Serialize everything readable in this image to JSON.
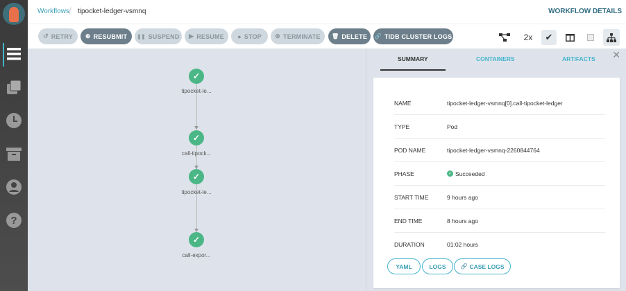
{
  "sidebar": {
    "items": [
      {
        "name": "workflows",
        "icon": "list-icon"
      },
      {
        "name": "templates",
        "icon": "copy-icon"
      },
      {
        "name": "cron",
        "icon": "clock-icon"
      },
      {
        "name": "archive",
        "icon": "archive-icon"
      },
      {
        "name": "user",
        "icon": "user-icon"
      },
      {
        "name": "help",
        "icon": "help-icon"
      }
    ]
  },
  "breadcrumb": {
    "parent": "Workflows",
    "separator": "/",
    "current": "tipocket-ledger-vsmnq"
  },
  "header": {
    "title": "WORKFLOW DETAILS"
  },
  "toolbar": {
    "buttons": [
      {
        "label": "RETRY",
        "icon": "↺"
      },
      {
        "label": "RESUBMIT",
        "icon": "⊕"
      },
      {
        "label": "SUSPEND",
        "icon": "❚❚"
      },
      {
        "label": "RESUME",
        "icon": "▶"
      },
      {
        "label": "STOP",
        "icon": "●"
      },
      {
        "label": "TERMINATE",
        "icon": "⊗"
      },
      {
        "label": "DELETE",
        "icon": "🗑"
      },
      {
        "label": "TIDB CLUSTER LOGS",
        "icon": "🔗"
      }
    ],
    "zoom": "2x"
  },
  "graph": {
    "nodes": [
      {
        "label": "tipocket-le...",
        "status": "succeeded"
      },
      {
        "label": "call-tipock...",
        "status": "succeeded"
      },
      {
        "label": "tipocket-le...",
        "status": "succeeded"
      },
      {
        "label": "call-expor...",
        "status": "succeeded"
      }
    ],
    "status_color": "#4bb786"
  },
  "panel": {
    "tabs": [
      "SUMMARY",
      "CONTAINERS",
      "ARTIFACTS"
    ],
    "active_tab": "SUMMARY",
    "rows": [
      {
        "key": "NAME",
        "value": "tipocket-ledger-vsmnq[0].call-tipocket-ledger"
      },
      {
        "key": "TYPE",
        "value": "Pod"
      },
      {
        "key": "POD NAME",
        "value": "tipocket-ledger-vsmnq-2260844764"
      },
      {
        "key": "PHASE",
        "value": "Succeeded"
      },
      {
        "key": "START TIME",
        "value": "9 hours ago"
      },
      {
        "key": "END TIME",
        "value": "8 hours ago"
      },
      {
        "key": "DURATION",
        "value": "01:02 hours"
      }
    ],
    "actions": [
      "YAML",
      "LOGS",
      "CASE LOGS"
    ]
  },
  "colors": {
    "accent": "#44b4cc",
    "dark_button": "#6d7f8b",
    "disabled_button": "#cfd8df",
    "success": "#4bb786"
  }
}
